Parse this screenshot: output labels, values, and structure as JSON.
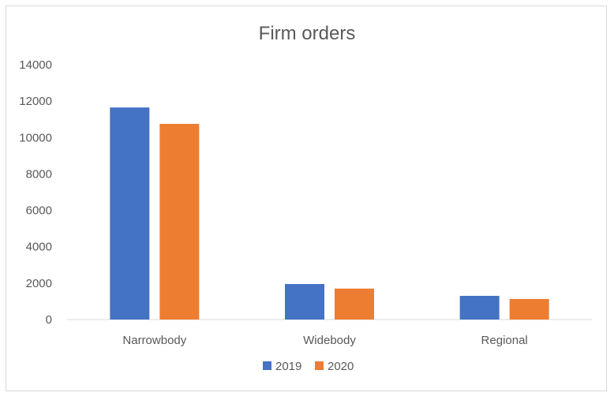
{
  "chart_data": {
    "type": "bar",
    "title": "Firm orders",
    "xlabel": "",
    "ylabel": "",
    "categories": [
      "Narrowbody",
      "Widebody",
      "Regional"
    ],
    "series": [
      {
        "name": "2019",
        "color": "#4472c4",
        "values": [
          11650,
          1950,
          1300
        ]
      },
      {
        "name": "2020",
        "color": "#ed7d31",
        "values": [
          10750,
          1700,
          1130
        ]
      }
    ],
    "ylim": [
      0,
      14000
    ],
    "yticks": [
      0,
      2000,
      4000,
      6000,
      8000,
      10000,
      12000,
      14000
    ],
    "grid": false,
    "legend": "bottom"
  }
}
